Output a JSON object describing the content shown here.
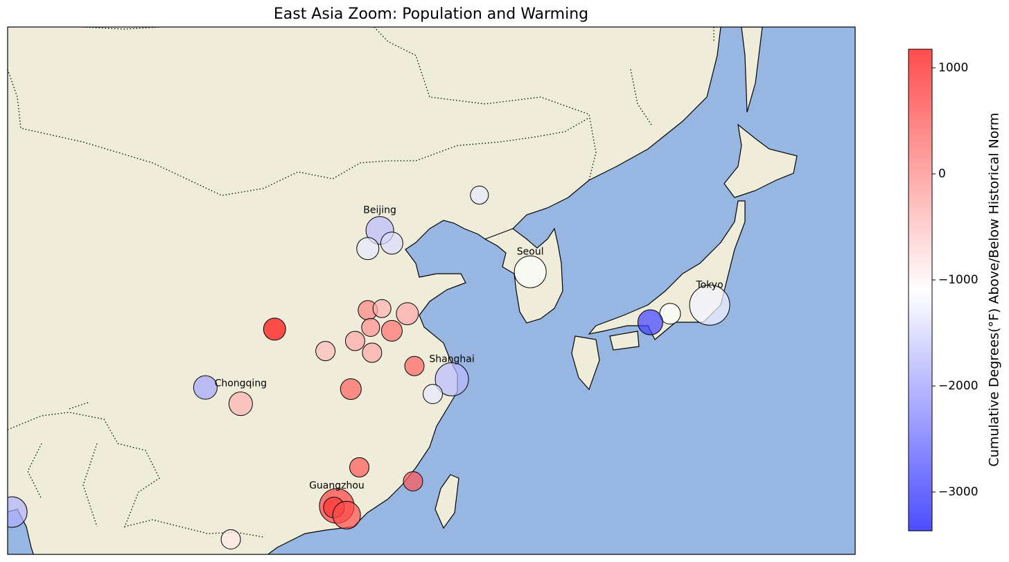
{
  "chart_data": {
    "type": "scatter",
    "title": "East Asia Zoom: Population and Warming",
    "projection": "mercator",
    "xlim": [
      90,
      150
    ],
    "ylim": [
      20,
      50
    ],
    "x": [
      123.4,
      116.35,
      115.5,
      117.2,
      127.0,
      139.7,
      136.9,
      135.5,
      108.9,
      115.5,
      116.5,
      118.3,
      115.7,
      117.2,
      112.5,
      114.6,
      115.8,
      118.8,
      121.45,
      120.1,
      104.0,
      106.5,
      114.3,
      114.9,
      118.7,
      113.3,
      113.1,
      114.0,
      105.8,
      90.3
    ],
    "y": [
      41.7,
      39.8,
      38.8,
      39.1,
      37.5,
      35.6,
      35.1,
      34.6,
      34.2,
      35.3,
      35.4,
      35.1,
      34.3,
      34.1,
      32.9,
      33.5,
      32.8,
      32.0,
      31.2,
      30.3,
      30.7,
      29.7,
      30.6,
      25.7,
      24.8,
      23.2,
      23.1,
      22.6,
      21.0,
      22.8
    ],
    "values": [
      -1300,
      -1700,
      -1300,
      -1400,
      -1100,
      -1200,
      -1100,
      -2800,
      1100,
      0,
      -400,
      -300,
      -100,
      200,
      -500,
      -300,
      -300,
      300,
      -1700,
      -1300,
      -1900,
      -400,
      300,
      400,
      400,
      600,
      700,
      500,
      -900,
      -1800
    ],
    "sizes": [
      6.8,
      16,
      10.2,
      10.2,
      21.2,
      33.6,
      9,
      13,
      10.2,
      7.8,
      6.8,
      10.2,
      6.8,
      9,
      7.8,
      7.8,
      7.8,
      7.8,
      23,
      7.8,
      11.6,
      11.6,
      9,
      7.8,
      7.8,
      25,
      9,
      16,
      7.8,
      19.4
    ],
    "labels": [
      null,
      "Beijing",
      null,
      null,
      "Seoul",
      "Tokyo",
      null,
      null,
      null,
      null,
      null,
      null,
      null,
      null,
      null,
      null,
      null,
      null,
      "Shanghai",
      null,
      null,
      "Chongqing",
      null,
      null,
      null,
      "Guangzhou",
      null,
      null,
      null,
      null
    ],
    "colormap": "bwr",
    "alpha": 0.7,
    "colorbar": {
      "label": "Cumulative Degrees(°F) Above/Below Historical Norm",
      "clim": [
        -3366,
        1176
      ],
      "ticks": [
        {
          "value": -3000,
          "label": "−3000"
        },
        {
          "value": -2000,
          "label": "−2000"
        },
        {
          "value": -1000,
          "label": "−1000"
        },
        0,
        1000
      ]
    }
  }
}
